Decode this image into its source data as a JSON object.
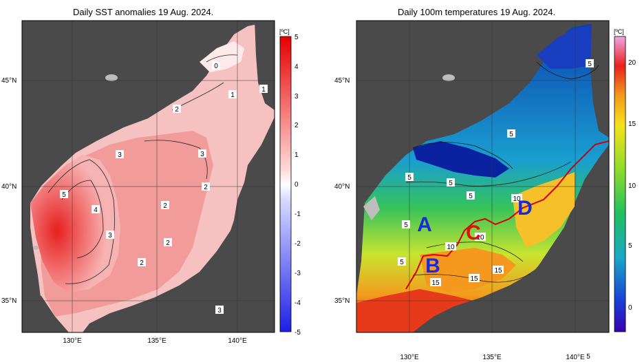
{
  "left": {
    "title": "Daily SST anomalies 19 Aug. 2024.",
    "unit": "[ºC]",
    "colorbar_ticks": [
      "5",
      "4",
      "3",
      "2",
      "1",
      "0",
      "-1",
      "-2",
      "-3",
      "-4",
      "-5"
    ],
    "contour_labels": [
      "0",
      "1",
      "1",
      "2",
      "3",
      "3",
      "5",
      "4",
      "3",
      "2",
      "2",
      "2",
      "2",
      "3"
    ]
  },
  "right": {
    "title": "Daily 100m temperatures 19 Aug. 2024.",
    "unit": "[ºC]",
    "colorbar_ticks": [
      "20",
      "15",
      "10",
      "5",
      "0"
    ],
    "contour_labels": [
      "5",
      "5",
      "5",
      "5",
      "5",
      "10",
      "10",
      "5",
      "5",
      "10",
      "15",
      "15",
      "15",
      "5"
    ],
    "markers": [
      "A",
      "B",
      "C",
      "D"
    ]
  },
  "axes": {
    "lat_labels": [
      "45°N",
      "40°N",
      "35°N"
    ],
    "lon_labels": [
      "130°E",
      "135°E",
      "140°E"
    ]
  },
  "colors": {
    "land": "#4a4a4a",
    "ice_shelf": "#bdbdbd",
    "anomaly_max": "#e60000",
    "anomaly_min": "#1e1ee6",
    "marker_blue": "#1a2bd6",
    "marker_red": "#e01010",
    "warm_current": "#d40000"
  }
}
